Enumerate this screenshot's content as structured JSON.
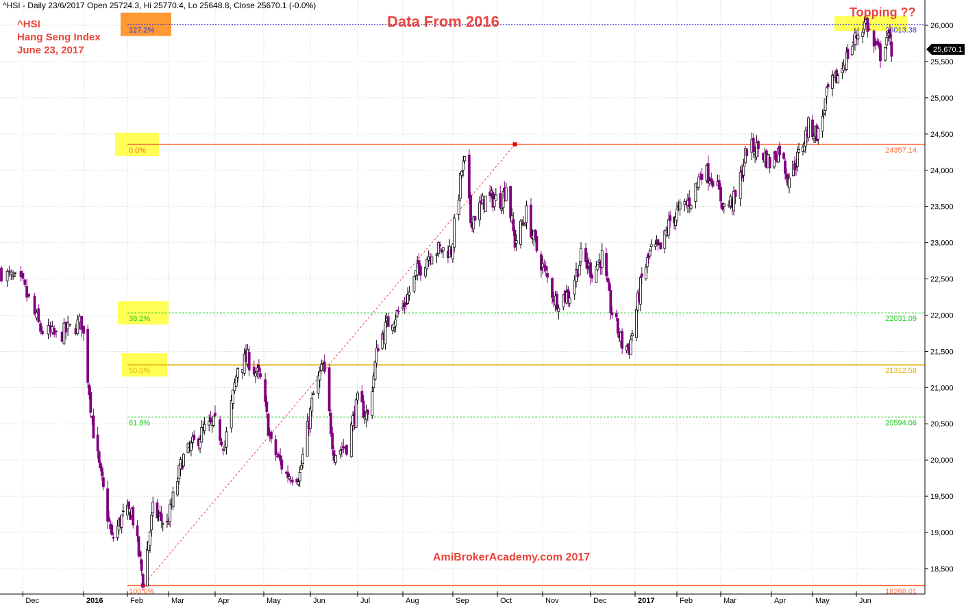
{
  "header": {
    "info": "^HSI - Daily 23/6/2017 Open 25724.3, Hi 25770.4, Lo 25648.8, Close 25670.1 (-0.0%)"
  },
  "annotations": {
    "ticker": "^HSI",
    "name": "Hang Seng Index",
    "date": "June 23, 2017",
    "title": "Data From 2016",
    "topping": "Topping ??",
    "watermark": "AmiBrokerAcademy.com  2017"
  },
  "colors": {
    "up_candle": "#000000",
    "down_candle": "#800080",
    "fib_0": "#ff6a3a",
    "fib_382": "#22cc22",
    "fib_50": "#e0b000",
    "fib_618": "#22cc22",
    "fib_1272": "#3a3ae8",
    "highlight_yellow": "#ffff55",
    "highlight_orange": "#ff9933",
    "text_red": "#e8453c"
  },
  "chart_data": {
    "type": "candlestick",
    "symbol": "^HSI",
    "ylim": [
      18150,
      26350
    ],
    "y_ticks": [
      18500,
      19000,
      19500,
      20000,
      20500,
      21000,
      21500,
      22000,
      22500,
      23000,
      23500,
      24000,
      24500,
      25000,
      25500,
      26000
    ],
    "y_tick_labels": [
      "18,500",
      "19,000",
      "19,500",
      "20,000",
      "20,500",
      "21,000",
      "21,500",
      "22,000",
      "22,500",
      "23,000",
      "23,500",
      "24,000",
      "24,500",
      "25,000",
      "25,500",
      "26,000"
    ],
    "x_labels": [
      "Dec",
      "2016",
      "Feb",
      "Mar",
      "Apr",
      "May",
      "Jun",
      "Jul",
      "Aug",
      "Sep",
      "Oct",
      "Nov",
      "Dec",
      "2017",
      "Feb",
      "Mar",
      "Apr",
      "May",
      "Jun"
    ],
    "x_label_bold": [
      false,
      true,
      false,
      false,
      false,
      false,
      false,
      false,
      false,
      false,
      false,
      false,
      false,
      true,
      false,
      false,
      false,
      false,
      false
    ],
    "grid": true,
    "last_close": 25670.1,
    "last_close_label": "25,670.1",
    "price_path": [
      [
        "2015-11-20",
        22600
      ],
      [
        "2015-12-01",
        22400
      ],
      [
        "2015-12-10",
        21800
      ],
      [
        "2015-12-18",
        21700
      ],
      [
        "2015-12-31",
        21900
      ],
      [
        "2016-01-08",
        20400
      ],
      [
        "2016-01-12",
        19900
      ],
      [
        "2016-01-21",
        18900
      ],
      [
        "2016-01-28",
        19200
      ],
      [
        "2016-02-04",
        19300
      ],
      [
        "2016-02-12",
        18350
      ],
      [
        "2016-02-19",
        19300
      ],
      [
        "2016-02-29",
        19100
      ],
      [
        "2016-03-10",
        20000
      ],
      [
        "2016-03-24",
        20400
      ],
      [
        "2016-04-01",
        20500
      ],
      [
        "2016-04-07",
        20200
      ],
      [
        "2016-04-15",
        21300
      ],
      [
        "2016-04-21",
        21400
      ],
      [
        "2016-04-29",
        21100
      ],
      [
        "2016-05-06",
        20200
      ],
      [
        "2016-05-16",
        19800
      ],
      [
        "2016-05-25",
        19800
      ],
      [
        "2016-06-03",
        20900
      ],
      [
        "2016-06-09",
        21300
      ],
      [
        "2016-06-16",
        20100
      ],
      [
        "2016-06-24",
        20200
      ],
      [
        "2016-07-01",
        20800
      ],
      [
        "2016-07-08",
        20600
      ],
      [
        "2016-07-15",
        21600
      ],
      [
        "2016-07-22",
        21900
      ],
      [
        "2016-08-01",
        22100
      ],
      [
        "2016-08-10",
        22600
      ],
      [
        "2016-08-19",
        22900
      ],
      [
        "2016-08-31",
        22900
      ],
      [
        "2016-09-07",
        24000
      ],
      [
        "2016-09-09",
        24100
      ],
      [
        "2016-09-13",
        23300
      ],
      [
        "2016-09-23",
        23600
      ],
      [
        "2016-10-04",
        23600
      ],
      [
        "2016-10-07",
        23800
      ],
      [
        "2016-10-13",
        23000
      ],
      [
        "2016-10-21",
        23400
      ],
      [
        "2016-10-28",
        22900
      ],
      [
        "2016-11-04",
        22500
      ],
      [
        "2016-11-09",
        22200
      ],
      [
        "2016-11-18",
        22300
      ],
      [
        "2016-11-25",
        22800
      ],
      [
        "2016-12-02",
        22600
      ],
      [
        "2016-12-09",
        22800
      ],
      [
        "2016-12-15",
        22100
      ],
      [
        "2016-12-23",
        21600
      ],
      [
        "2016-12-28",
        21550
      ],
      [
        "2017-01-06",
        22500
      ],
      [
        "2017-01-13",
        22900
      ],
      [
        "2017-01-20",
        22900
      ],
      [
        "2017-01-27",
        23300
      ],
      [
        "2017-02-10",
        23600
      ],
      [
        "2017-02-17",
        24000
      ],
      [
        "2017-02-24",
        23900
      ],
      [
        "2017-03-03",
        23500
      ],
      [
        "2017-03-10",
        23600
      ],
      [
        "2017-03-17",
        24300
      ],
      [
        "2017-03-24",
        24300
      ],
      [
        "2017-03-31",
        24100
      ],
      [
        "2017-04-07",
        24300
      ],
      [
        "2017-04-13",
        23900
      ],
      [
        "2017-04-21",
        24200
      ],
      [
        "2017-04-28",
        24600
      ],
      [
        "2017-05-05",
        24500
      ],
      [
        "2017-05-12",
        25100
      ],
      [
        "2017-05-19",
        25300
      ],
      [
        "2017-05-26",
        25600
      ],
      [
        "2017-06-02",
        25900
      ],
      [
        "2017-06-07",
        26050
      ],
      [
        "2017-06-12",
        25700
      ],
      [
        "2017-06-16",
        25600
      ],
      [
        "2017-06-20",
        25850
      ],
      [
        "2017-06-23",
        25670
      ]
    ],
    "fib_levels": [
      {
        "ratio": "0.0%",
        "value": 24357.14,
        "value_label": "24357.14",
        "color": "#ff6a3a",
        "style": "solid"
      },
      {
        "ratio": "38.2%",
        "value": 22031.09,
        "value_label": "22031.09",
        "color": "#22cc22",
        "style": "dashed"
      },
      {
        "ratio": "50.0%",
        "value": 21312.58,
        "value_label": "21312.58",
        "color": "#e0b000",
        "style": "solid"
      },
      {
        "ratio": "61.8%",
        "value": 20594.06,
        "value_label": "20594.06",
        "color": "#22cc22",
        "style": "dashed"
      },
      {
        "ratio": "100.0%",
        "value": 18268.01,
        "value_label": "18268.01",
        "color": "#ff6a3a",
        "style": "solid"
      },
      {
        "ratio": "127.2%",
        "value": 26013.38,
        "value_label": "26013.38",
        "color": "#3a3ae8",
        "style": "dotted"
      }
    ],
    "trendline": {
      "from": [
        "2016-02-12",
        18268.01
      ],
      "to": [
        "2016-10-13",
        24357.14
      ],
      "color": "#e8453c",
      "style": "dashed"
    }
  }
}
